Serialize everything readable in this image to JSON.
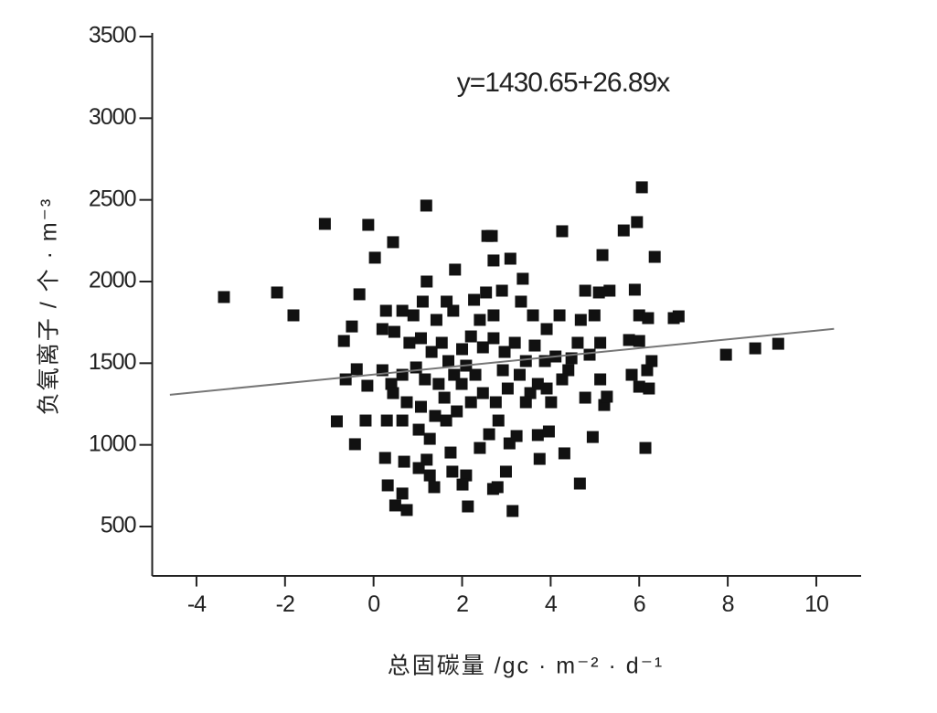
{
  "chart_data": {
    "type": "scatter",
    "annotation": "y=1430.65+26.89x",
    "x_label": "总固碳量 /gc · m⁻² · d⁻¹",
    "y_label": "负氧离子 / 个 · m⁻³",
    "color": "#111111",
    "xlim": [
      -5,
      11
    ],
    "xticks": [
      -4,
      -2,
      0,
      2,
      4,
      6,
      8,
      10
    ],
    "ylim": [
      200,
      3500
    ],
    "yticks": [
      500,
      1000,
      1500,
      2000,
      2500,
      3000,
      3500
    ],
    "fit": {
      "color": "#777777",
      "x": [
        -4.6,
        10.4
      ],
      "values": [
        1306.96,
        1710.31
      ]
    },
    "x": [
      -3.38,
      -2.18,
      -1.81,
      -1.1,
      -0.12,
      0.44,
      0.03,
      1.19,
      6.06,
      5.95,
      5.65,
      4.26,
      6.35,
      5.17,
      2.57,
      2.67,
      3.09,
      2.71,
      1.84,
      1.2,
      -0.32,
      -0.49,
      -0.67,
      -0.38,
      -0.63,
      -0.14,
      -0.83,
      -0.18,
      -0.42,
      0.3,
      0.65,
      0.26,
      0.32,
      0.49,
      0.75,
      0.65,
      0.69,
      1.02,
      1.2,
      1.27,
      1.37,
      1.74,
      1.78,
      2.09,
      2.13,
      2.01,
      2.7,
      2.8,
      2.99,
      3.14,
      3.07,
      3.23,
      3.71,
      3.96,
      3.75,
      4.31,
      4.66,
      4.95,
      6.14,
      6.0,
      6.22,
      6.18,
      6.28,
      5.83,
      5.21,
      5.27,
      5.12,
      4.78,
      4.4,
      4.11,
      4.61,
      4.88,
      5.12,
      4.68,
      4.78,
      4.99,
      5.09,
      5.33,
      5.9,
      6.0,
      6.2,
      6.78,
      6.89,
      5.77,
      6.0,
      4.2,
      3.91,
      3.6,
      3.33,
      2.9,
      3.37,
      2.54,
      2.27,
      1.65,
      1.8,
      1.42,
      1.11,
      0.9,
      0.65,
      0.28,
      0.2,
      0.47,
      0.81,
      1.07,
      1.31,
      1.54,
      1.69,
      2.0,
      2.2,
      2.47,
      2.71,
      2.96,
      3.19,
      3.44,
      3.64,
      3.87,
      2.71,
      2.4,
      2.09,
      1.82,
      1.47,
      1.16,
      0.96,
      0.65,
      0.4,
      0.2,
      0.44,
      0.75,
      1.07,
      1.39,
      1.64,
      1.88,
      2.2,
      2.47,
      2.76,
      3.03,
      3.3,
      3.54,
      2.82,
      2.61,
      2.4,
      1.27,
      1.02,
      1.6,
      1.99,
      2.3,
      2.92,
      4.01,
      4.26,
      4.47,
      3.71,
      3.44,
      3.91,
      7.96,
      8.62,
      9.14
    ],
    "values": [
      1905,
      1933,
      1793,
      2353,
      2347,
      2241,
      2146,
      2465,
      2577,
      2364,
      2313,
      2308,
      2151,
      2162,
      2279,
      2279,
      2140,
      2129,
      2073,
      2000,
      1922,
      1725,
      1636,
      1463,
      1401,
      1362,
      1144,
      1149,
      1004,
      1149,
      1149,
      920,
      752,
      629,
      601,
      702,
      897,
      858,
      909,
      813,
      741,
      953,
      836,
      813,
      623,
      757,
      730,
      741,
      836,
      595,
      1009,
      1054,
      1060,
      1082,
      914,
      948,
      763,
      1048,
      981,
      1356,
      1345,
      1457,
      1513,
      1429,
      1244,
      1295,
      1401,
      1289,
      1457,
      1541,
      1625,
      1552,
      1625,
      1765,
      1944,
      1793,
      1933,
      1944,
      1950,
      1793,
      1776,
      1776,
      1787,
      1642,
      1636,
      1793,
      1709,
      1793,
      1877,
      1944,
      2017,
      1933,
      1888,
      1877,
      1821,
      1765,
      1877,
      1793,
      1821,
      1821,
      1709,
      1692,
      1625,
      1653,
      1569,
      1625,
      1513,
      1586,
      1664,
      1597,
      1653,
      1569,
      1625,
      1513,
      1608,
      1513,
      1793,
      1765,
      1485,
      1429,
      1373,
      1401,
      1474,
      1429,
      1373,
      1457,
      1317,
      1261,
      1233,
      1177,
      1149,
      1205,
      1261,
      1317,
      1261,
      1345,
      1429,
      1317,
      1149,
      1065,
      981,
      1037,
      1093,
      1289,
      1373,
      1429,
      1457,
      1261,
      1401,
      1530,
      1373,
      1261,
      1345,
      1552,
      1591,
      1619
    ]
  }
}
